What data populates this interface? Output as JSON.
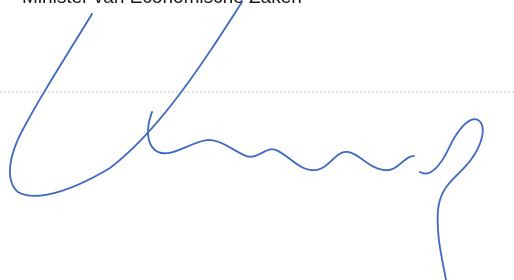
{
  "document": {
    "signer_title": "Minister van Economische Zaken"
  }
}
